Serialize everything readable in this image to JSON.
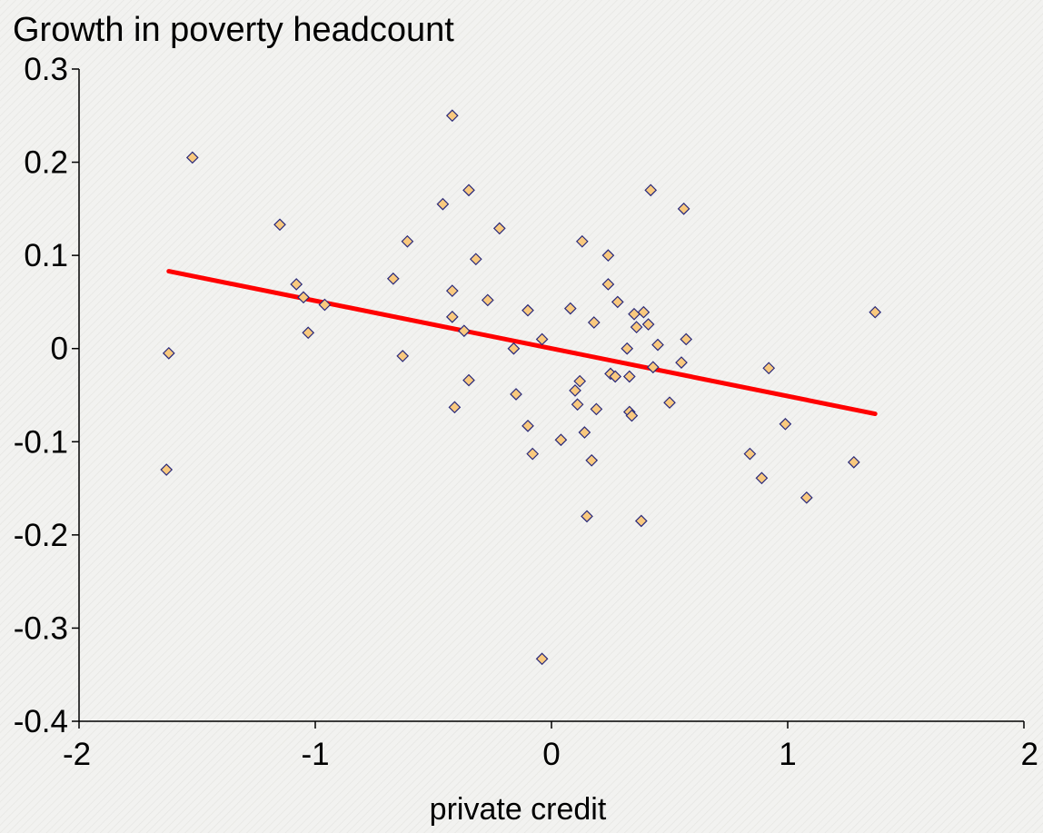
{
  "chart_data": {
    "type": "scatter",
    "title": "Growth in poverty headcount",
    "xlabel": "private credit",
    "ylabel": "",
    "xlim": [
      -2,
      2
    ],
    "ylim": [
      -0.4,
      0.3
    ],
    "xticks": [
      "-2",
      "-1",
      "0",
      "1",
      "2"
    ],
    "xtick_values": [
      -2,
      -1,
      0,
      1,
      2
    ],
    "yticks": [
      "0.3",
      "0.2",
      "0.1",
      "0",
      "-0.1",
      "-0.2",
      "-0.3",
      "-0.4"
    ],
    "ytick_values": [
      0.3,
      0.2,
      0.1,
      0,
      -0.1,
      -0.2,
      -0.3,
      -0.4
    ],
    "grid": false,
    "legend": "none",
    "colors": {
      "marker_fill": "#f9c97e",
      "marker_stroke": "#2a2a7a",
      "trend_line": "#ff0000",
      "axis": "#000000",
      "background": "#f2f2f0"
    },
    "points": [
      {
        "x": -1.62,
        "y": -0.005
      },
      {
        "x": -1.63,
        "y": -0.13
      },
      {
        "x": -1.52,
        "y": 0.205
      },
      {
        "x": -1.15,
        "y": 0.133
      },
      {
        "x": -1.08,
        "y": 0.069
      },
      {
        "x": -1.05,
        "y": 0.055
      },
      {
        "x": -1.03,
        "y": 0.017
      },
      {
        "x": -0.96,
        "y": 0.047
      },
      {
        "x": -0.67,
        "y": 0.075
      },
      {
        "x": -0.63,
        "y": -0.008
      },
      {
        "x": -0.61,
        "y": 0.115
      },
      {
        "x": -0.46,
        "y": 0.155
      },
      {
        "x": -0.42,
        "y": 0.25
      },
      {
        "x": -0.42,
        "y": 0.062
      },
      {
        "x": -0.42,
        "y": 0.034
      },
      {
        "x": -0.41,
        "y": -0.063
      },
      {
        "x": -0.37,
        "y": 0.019
      },
      {
        "x": -0.35,
        "y": 0.17
      },
      {
        "x": -0.35,
        "y": -0.034
      },
      {
        "x": -0.32,
        "y": 0.096
      },
      {
        "x": -0.27,
        "y": 0.052
      },
      {
        "x": -0.22,
        "y": 0.129
      },
      {
        "x": -0.16,
        "y": 0.0
      },
      {
        "x": -0.15,
        "y": -0.049
      },
      {
        "x": -0.1,
        "y": 0.041
      },
      {
        "x": -0.1,
        "y": -0.083
      },
      {
        "x": -0.08,
        "y": -0.113
      },
      {
        "x": -0.04,
        "y": 0.01
      },
      {
        "x": -0.04,
        "y": -0.333
      },
      {
        "x": 0.04,
        "y": -0.098
      },
      {
        "x": 0.08,
        "y": 0.043
      },
      {
        "x": 0.1,
        "y": -0.045
      },
      {
        "x": 0.11,
        "y": -0.06
      },
      {
        "x": 0.12,
        "y": -0.035
      },
      {
        "x": 0.13,
        "y": 0.115
      },
      {
        "x": 0.14,
        "y": -0.09
      },
      {
        "x": 0.15,
        "y": -0.18
      },
      {
        "x": 0.17,
        "y": -0.12
      },
      {
        "x": 0.18,
        "y": 0.028
      },
      {
        "x": 0.19,
        "y": -0.065
      },
      {
        "x": 0.24,
        "y": 0.1
      },
      {
        "x": 0.24,
        "y": 0.069
      },
      {
        "x": 0.25,
        "y": -0.027
      },
      {
        "x": 0.27,
        "y": -0.03
      },
      {
        "x": 0.28,
        "y": 0.05
      },
      {
        "x": 0.32,
        "y": 0.0
      },
      {
        "x": 0.33,
        "y": -0.03
      },
      {
        "x": 0.33,
        "y": -0.068
      },
      {
        "x": 0.34,
        "y": -0.072
      },
      {
        "x": 0.35,
        "y": 0.037
      },
      {
        "x": 0.36,
        "y": 0.023
      },
      {
        "x": 0.38,
        "y": -0.185
      },
      {
        "x": 0.39,
        "y": 0.039
      },
      {
        "x": 0.41,
        "y": 0.026
      },
      {
        "x": 0.42,
        "y": 0.17
      },
      {
        "x": 0.43,
        "y": -0.02
      },
      {
        "x": 0.45,
        "y": 0.004
      },
      {
        "x": 0.5,
        "y": -0.058
      },
      {
        "x": 0.55,
        "y": -0.015
      },
      {
        "x": 0.56,
        "y": 0.15
      },
      {
        "x": 0.57,
        "y": 0.01
      },
      {
        "x": 0.84,
        "y": -0.113
      },
      {
        "x": 0.89,
        "y": -0.139
      },
      {
        "x": 0.92,
        "y": -0.021
      },
      {
        "x": 0.99,
        "y": -0.081
      },
      {
        "x": 1.08,
        "y": -0.16
      },
      {
        "x": 1.28,
        "y": -0.122
      },
      {
        "x": 1.37,
        "y": 0.039
      }
    ],
    "trend_line": [
      {
        "x": -1.62,
        "y": 0.083
      },
      {
        "x": 1.37,
        "y": -0.07
      }
    ]
  }
}
